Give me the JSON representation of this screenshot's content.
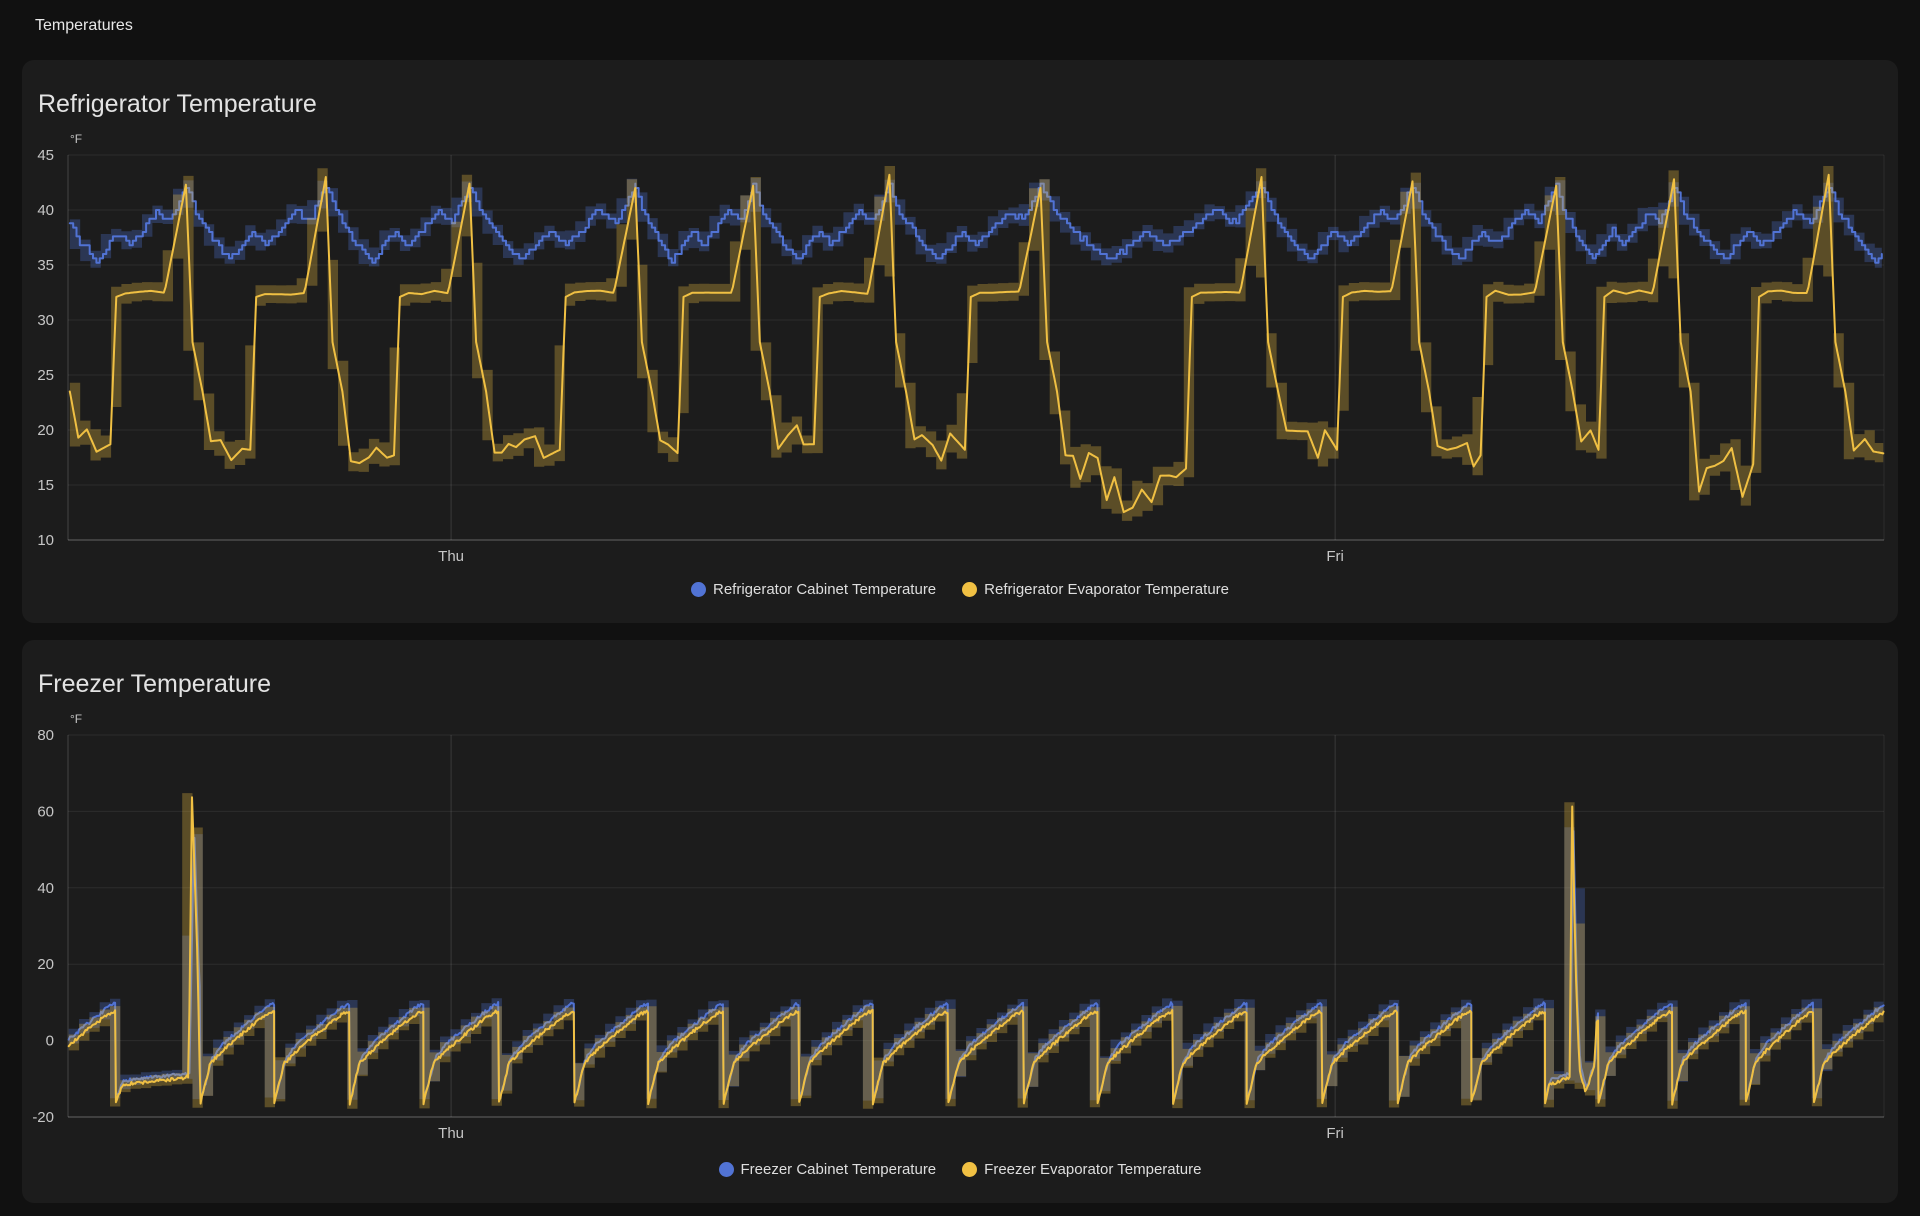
{
  "page": {
    "title": "Temperatures",
    "background": "#111111",
    "card_background": "#1c1c1c"
  },
  "cards": [
    {
      "title": "Refrigerator Temperature"
    },
    {
      "title": "Freezer Temperature"
    }
  ],
  "chart_data": [
    {
      "type": "line",
      "title": "Refrigerator Temperature",
      "unit": "°F",
      "grid": true,
      "legend_position": "bottom",
      "y_axis": {
        "min": 10,
        "max": 45,
        "tick_step": 5,
        "ticks": [
          45,
          40,
          35,
          30,
          25,
          20,
          15,
          10
        ]
      },
      "x_axis": {
        "span_hours": 49.3,
        "day_labels": [
          {
            "label": "Thu",
            "t": 10.4
          },
          {
            "label": "Fri",
            "t": 34.4
          }
        ]
      },
      "series": [
        {
          "name": "Refrigerator Cabinet Temperature",
          "color": "#5173d4",
          "band_opacity": 0.3,
          "band_width_f": 0.5,
          "quantize_f": 0.4,
          "typical_range_f": [
            35,
            42.5
          ]
        },
        {
          "name": "Refrigerator Evaporator Temperature",
          "color": "#f0c043",
          "band_opacity": 0.3,
          "band_width_f": 0.8,
          "plateau_f": 32.3,
          "typical_range_f": [
            12,
            43.5
          ]
        }
      ],
      "generation": {
        "kind": "refrigerator",
        "cycles": {
          "peak_t": [
            -0.4,
            3.2,
            7.0,
            10.9,
            15.4,
            18.6,
            22.3,
            26.4,
            32.4,
            36.5,
            40.4,
            43.6,
            47.8,
            51.8
          ],
          "peak_v": [
            42.5,
            42.3,
            43.0,
            42.4,
            42.0,
            42.2,
            43.2,
            42.0,
            43.0,
            42.6,
            42.2,
            42.8,
            43.2,
            42.5
          ],
          "low_v": [
            19.0,
            18.5,
            18.0,
            18.5,
            18.2,
            19.0,
            18.5,
            16.8,
            18.5,
            18.0,
            18.5,
            17.2,
            18.5,
            18.5
          ],
          "deep": [
            false,
            false,
            false,
            false,
            false,
            false,
            false,
            true,
            false,
            false,
            false,
            true,
            false,
            false
          ]
        },
        "cabinet_shape": [
          [
            0,
            42.2
          ],
          [
            0.07,
            39.7
          ],
          [
            0.2,
            37.2
          ],
          [
            0.32,
            35.4
          ],
          [
            0.48,
            38.1
          ],
          [
            0.57,
            36.7
          ],
          [
            0.78,
            39.9
          ],
          [
            0.88,
            39.0
          ],
          [
            1,
            42.2
          ]
        ],
        "seed": 42
      }
    },
    {
      "type": "line",
      "title": "Freezer Temperature",
      "unit": "°F",
      "grid": true,
      "legend_position": "bottom",
      "y_axis": {
        "min": -20,
        "max": 80,
        "tick_step": 20,
        "ticks": [
          80,
          60,
          40,
          20,
          0,
          -20
        ]
      },
      "x_axis": {
        "span_hours": 49.3,
        "day_labels": [
          {
            "label": "Thu",
            "t": 10.4
          },
          {
            "label": "Fri",
            "t": 34.4
          }
        ]
      },
      "series": [
        {
          "name": "Freezer Cabinet Temperature",
          "color": "#5173d4",
          "band_opacity": 0.3,
          "band_width_f": 1.0,
          "typical_range_f": [
            -15,
            10
          ]
        },
        {
          "name": "Freezer Evaporator Temperature",
          "color": "#f0c043",
          "band_opacity": 0.3,
          "band_width_f": 1.1,
          "typical_range_f": [
            -17,
            8
          ]
        }
      ],
      "generation": {
        "kind": "freezer",
        "drop_times": [
          -0.75,
          1.3,
          3.6,
          5.6,
          7.65,
          9.65,
          11.7,
          13.75,
          15.75,
          17.8,
          19.85,
          21.85,
          23.9,
          25.95,
          27.95,
          30.0,
          32.0,
          34.05,
          36.1,
          38.1,
          40.1,
          41.55,
          43.55,
          45.55,
          47.4,
          49.4
        ],
        "evap_cycle_shape": [
          [
            0,
            -16.3
          ],
          [
            0.05,
            -12.5
          ],
          [
            0.13,
            -6.0
          ],
          [
            0.3,
            -2.6
          ],
          [
            0.6,
            2.4
          ],
          [
            0.85,
            6.3
          ],
          [
            0.965,
            7.6
          ]
        ],
        "cabinet_cycle_shape": [
          [
            0.02,
            -14.3
          ],
          [
            0.07,
            -11.0
          ],
          [
            0.15,
            -4.8
          ],
          [
            0.3,
            -0.9
          ],
          [
            0.6,
            4.0
          ],
          [
            0.85,
            8.0
          ],
          [
            0.975,
            9.7
          ]
        ],
        "defrost_spikes": [
          {
            "t": 3.32,
            "evaporator_peak_f": 64.5,
            "cabinet_peak_f": 56.5
          },
          {
            "t": 40.8,
            "evaporator_peak_f": 64.0,
            "cabinet_peak_f": 57.0
          }
        ],
        "seed": 7
      }
    }
  ]
}
